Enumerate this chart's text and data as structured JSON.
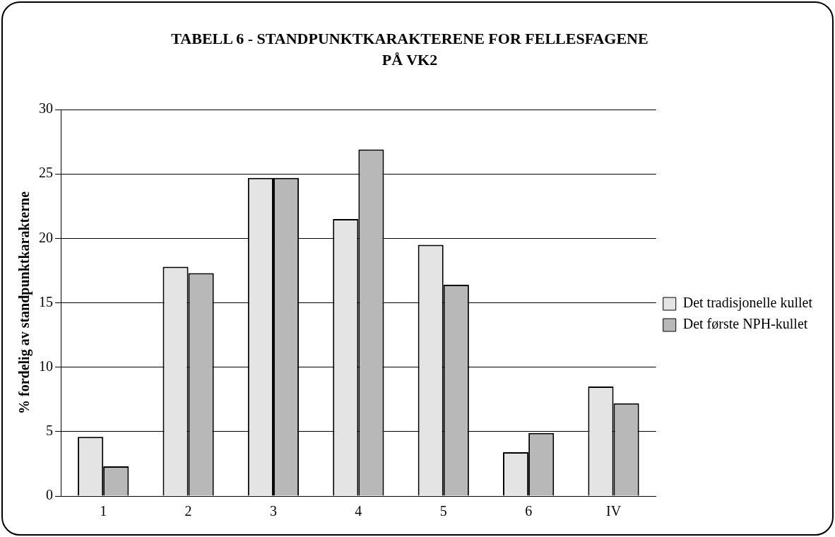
{
  "chart_data": {
    "type": "bar",
    "title": "TABELL 6 - STANDPUNKTKARAKTERENE FOR FELLESFAGENE PÅ VK2",
    "ylabel": "% fordelig av standpunktkarakterne",
    "categories": [
      "1",
      "2",
      "3",
      "4",
      "5",
      "6",
      "IV"
    ],
    "series": [
      {
        "name": "Det tradisjonelle kullet",
        "color": "#e4e4e4",
        "values": [
          4.6,
          17.8,
          24.7,
          21.5,
          19.5,
          3.4,
          8.5
        ]
      },
      {
        "name": "Det første NPH-kullet",
        "color": "#b8b8b8",
        "values": [
          2.3,
          17.3,
          24.7,
          26.9,
          16.4,
          4.9,
          7.2
        ]
      }
    ],
    "ylim": [
      0,
      30
    ],
    "yticks": [
      0,
      5,
      10,
      15,
      20,
      25,
      30
    ],
    "grid": "y",
    "legend": "right"
  }
}
